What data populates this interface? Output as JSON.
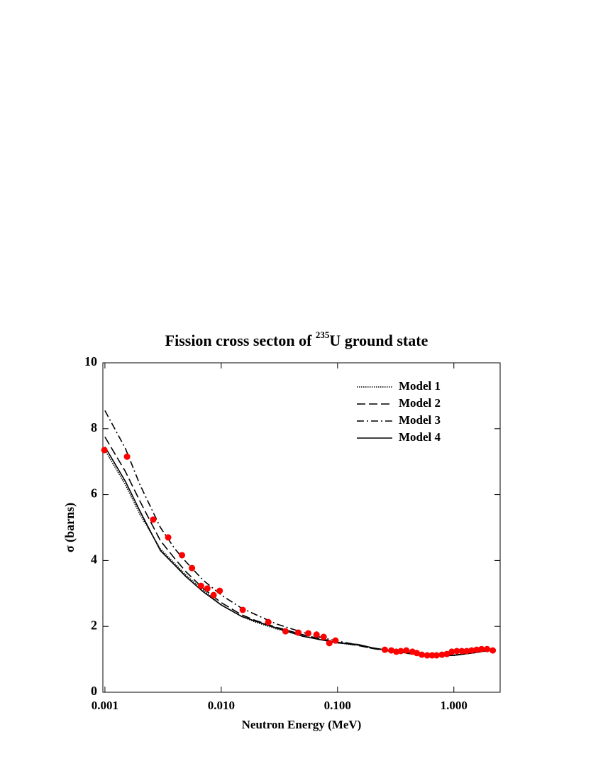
{
  "chart_data": {
    "type": "line",
    "title_parts": [
      "Fission cross secton of ",
      "235",
      "U ground state"
    ],
    "xlabel": "Neutron Energy (MeV)",
    "ylabel": "σ (barns)",
    "xscale": "log",
    "xlim": [
      0.00096,
      2.5
    ],
    "ylim": [
      0,
      10
    ],
    "xticks": [
      0.001,
      {
        "value": 0.01,
        "label": "0.010"
      },
      {
        "value": 0.1,
        "label": "0.100"
      },
      {
        "value": 1,
        "label": "1.000"
      }
    ],
    "yticks": [
      0,
      2,
      4,
      6,
      8,
      10
    ],
    "legend": "upper right",
    "x": [
      0.001,
      0.0015,
      0.002,
      0.003,
      0.004,
      0.005,
      0.007,
      0.01,
      0.015,
      0.02,
      0.03,
      0.05,
      0.07,
      0.1,
      0.15,
      0.2,
      0.3,
      0.5,
      0.7,
      1.0,
      1.5,
      2.0
    ],
    "series": [
      {
        "name": "Model 1",
        "color": "#000000",
        "dash": "1.5,1.5",
        "values": [
          7.35,
          6.3,
          5.4,
          4.35,
          3.9,
          3.55,
          3.1,
          2.65,
          2.3,
          2.12,
          1.92,
          1.72,
          1.6,
          1.5,
          1.42,
          1.33,
          1.24,
          1.15,
          1.12,
          1.13,
          1.2,
          1.27
        ]
      },
      {
        "name": "Model 2",
        "color": "#000000",
        "dash": "12,5",
        "values": [
          7.75,
          6.7,
          5.8,
          4.6,
          4.05,
          3.65,
          3.15,
          2.72,
          2.35,
          2.17,
          1.97,
          1.75,
          1.63,
          1.52,
          1.42,
          1.33,
          1.23,
          1.14,
          1.11,
          1.12,
          1.2,
          1.27
        ]
      },
      {
        "name": "Model 3",
        "color": "#000000",
        "dash": "10,4,2,4",
        "values": [
          8.55,
          7.4,
          6.3,
          5.0,
          4.35,
          3.95,
          3.4,
          2.95,
          2.55,
          2.35,
          2.07,
          1.82,
          1.68,
          1.55,
          1.44,
          1.34,
          1.24,
          1.15,
          1.11,
          1.12,
          1.2,
          1.27
        ]
      },
      {
        "name": "Model 4",
        "color": "#000000",
        "dash": "none",
        "values": [
          7.45,
          6.4,
          5.5,
          4.3,
          3.85,
          3.5,
          3.05,
          2.65,
          2.3,
          2.15,
          1.95,
          1.7,
          1.6,
          1.5,
          1.45,
          1.35,
          1.25,
          1.15,
          1.1,
          1.12,
          1.2,
          1.27
        ]
      }
    ],
    "points": {
      "color": "#ff0000",
      "x": [
        0.00099,
        0.00155,
        0.0026,
        0.0035,
        0.0046,
        0.0056,
        0.0067,
        0.0076,
        0.0086,
        0.0097,
        0.0153,
        0.0254,
        0.0357,
        0.046,
        0.056,
        0.066,
        0.076,
        0.085,
        0.096,
        0.255,
        0.29,
        0.32,
        0.35,
        0.39,
        0.44,
        0.48,
        0.53,
        0.59,
        0.65,
        0.71,
        0.79,
        0.87,
        0.96,
        1.06,
        1.17,
        1.29,
        1.42,
        1.57,
        1.73,
        1.93,
        2.16
      ],
      "values": [
        7.35,
        7.15,
        5.24,
        4.7,
        4.16,
        3.77,
        3.23,
        3.15,
        2.95,
        3.08,
        2.5,
        2.13,
        1.85,
        1.81,
        1.79,
        1.75,
        1.68,
        1.49,
        1.57,
        1.29,
        1.27,
        1.23,
        1.25,
        1.27,
        1.23,
        1.19,
        1.14,
        1.12,
        1.12,
        1.12,
        1.14,
        1.16,
        1.23,
        1.25,
        1.25,
        1.25,
        1.27,
        1.29,
        1.31,
        1.31,
        1.27
      ]
    }
  }
}
